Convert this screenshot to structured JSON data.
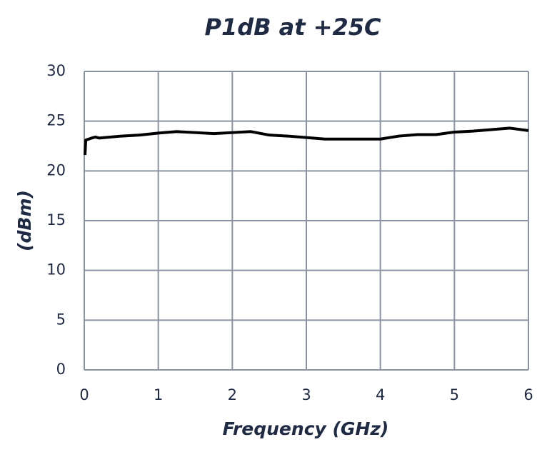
{
  "chart_data": {
    "type": "line",
    "title": "P1dB at +25C",
    "x_label": "Frequency (GHz)",
    "y_label": "(dBm)",
    "x": [
      0.01,
      0.02,
      0.1,
      0.15,
      0.2,
      0.5,
      0.75,
      1,
      1.25,
      1.5,
      1.75,
      2,
      2.25,
      2.5,
      2.75,
      3,
      3.25,
      3.5,
      3.75,
      4,
      4.25,
      4.5,
      4.75,
      5,
      5.25,
      5.5,
      5.75,
      6
    ],
    "series": [
      {
        "color": "#000000",
        "values": [
          21.6,
          23.1,
          23.3,
          23.4,
          23.3,
          23.5,
          23.6,
          23.8,
          23.95,
          23.85,
          23.75,
          23.85,
          23.95,
          23.6,
          23.5,
          23.35,
          23.2,
          23.2,
          23.2,
          23.2,
          23.5,
          23.65,
          23.65,
          23.9,
          24.0,
          24.15,
          24.3,
          24.05
        ]
      }
    ],
    "xlim": [
      0,
      6
    ],
    "xticks": [
      0,
      1,
      2,
      3,
      4,
      5,
      6
    ],
    "ylim": [
      0,
      30
    ],
    "yticks": [
      0,
      5,
      10,
      15,
      20,
      25,
      30
    ],
    "grid": true
  }
}
